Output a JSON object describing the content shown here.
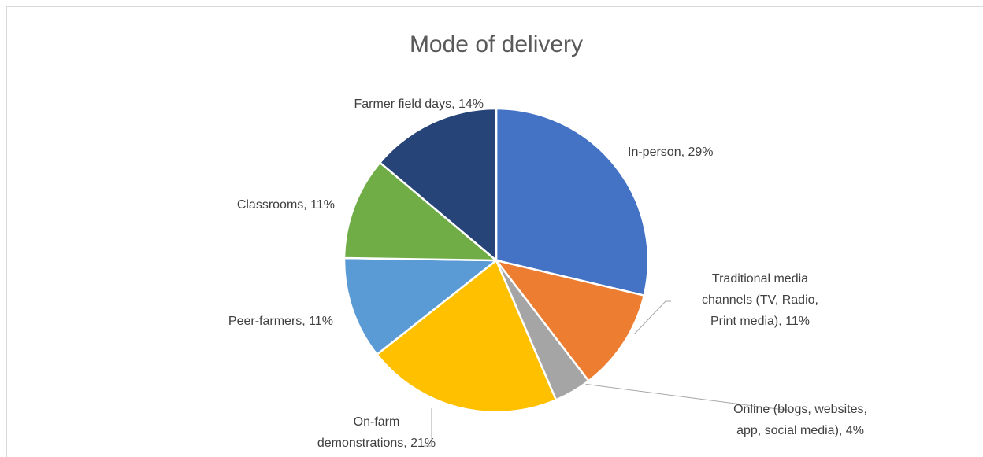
{
  "chart_data": {
    "type": "pie",
    "title": "Mode of delivery",
    "values": [
      29,
      11,
      4,
      21,
      11,
      11,
      14
    ],
    "value_labels": [
      [
        "In-person, 29%"
      ],
      [
        "Traditional media",
        "channels (TV, Radio,",
        "Print media), 11%"
      ],
      [
        "Online (blogs, websites,",
        "app, social media), 4%"
      ],
      [
        "On-farm",
        "demonstrations, 21%"
      ],
      [
        "Peer-farmers, 11%"
      ],
      [
        "Classrooms, 11%"
      ],
      [
        "Farmer field days, 14%"
      ]
    ],
    "colors": [
      "#4472c4",
      "#ed7d31",
      "#a5a5a5",
      "#ffc000",
      "#5b9bd5",
      "#70ad47",
      "#264478"
    ]
  }
}
